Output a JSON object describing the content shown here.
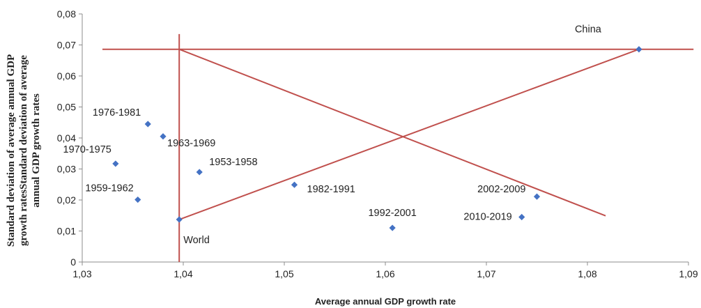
{
  "chart_data": {
    "type": "scatter",
    "title": "",
    "xlabel": "Average annual GDP growth rate",
    "ylabel_lines": [
      "Standard deviation of average annual GDP",
      "growth ratesStandard deviation of average",
      "annual GDP growth rates"
    ],
    "xlim": [
      1.03,
      1.09
    ],
    "ylim": [
      0,
      0.08
    ],
    "x_ticks": [
      1.03,
      1.04,
      1.05,
      1.06,
      1.07,
      1.08,
      1.09
    ],
    "y_ticks": [
      0,
      0.01,
      0.02,
      0.03,
      0.04,
      0.05,
      0.06,
      0.07,
      0.08
    ],
    "x_tick_labels": [
      "1,03",
      "1,04",
      "1,05",
      "1,06",
      "1,07",
      "1,08",
      "1,09"
    ],
    "y_tick_labels": [
      "0",
      "0,01",
      "0,02",
      "0,03",
      "0,04",
      "0,05",
      "0,06",
      "0,07",
      "0,08"
    ],
    "grid": false,
    "marker_color": "#4472c4",
    "line_color": "#c0504d",
    "points": [
      {
        "label": "1976-1981",
        "x": 1.0365,
        "y": 0.0445
      },
      {
        "label": "1963-1969",
        "x": 1.038,
        "y": 0.0405
      },
      {
        "label": "1970-1975",
        "x": 1.0333,
        "y": 0.0317
      },
      {
        "label": "1953-1958",
        "x": 1.0416,
        "y": 0.029
      },
      {
        "label": "1959-1962",
        "x": 1.0355,
        "y": 0.0201
      },
      {
        "label": "1982-1991",
        "x": 1.051,
        "y": 0.0249
      },
      {
        "label": "World",
        "x": 1.0396,
        "y": 0.0137
      },
      {
        "label": "1992-2001",
        "x": 1.0607,
        "y": 0.011
      },
      {
        "label": "2002-2009",
        "x": 1.075,
        "y": 0.0211
      },
      {
        "label": "2010-2019",
        "x": 1.0735,
        "y": 0.0145
      },
      {
        "label": "China",
        "x": 1.0851,
        "y": 0.0686
      }
    ],
    "reference_lines": [
      {
        "x1": 1.032,
        "y1": 0.0686,
        "x2": 1.0905,
        "y2": 0.0686
      },
      {
        "x1": 1.0396,
        "y1": 0.0,
        "x2": 1.0396,
        "y2": 0.0735
      },
      {
        "x1": 1.0396,
        "y1": 0.0137,
        "x2": 1.0851,
        "y2": 0.0686
      },
      {
        "x1": 1.0396,
        "y1": 0.0686,
        "x2": 1.0818,
        "y2": 0.0149
      }
    ]
  }
}
